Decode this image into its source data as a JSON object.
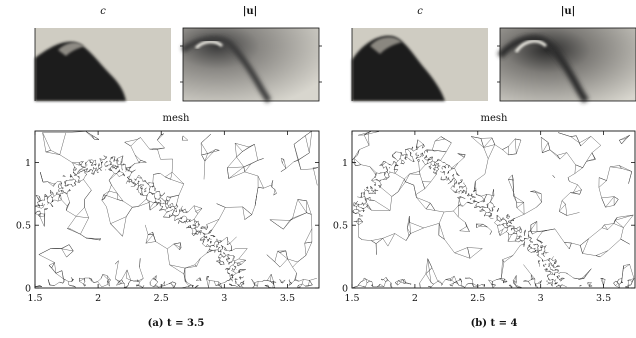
{
  "figure": {
    "panels": [
      {
        "id": "a",
        "caption": "(a) t = 3.5",
        "field_titles": [
          "c",
          "|u|"
        ],
        "mesh_title": "mesh",
        "x_ticks": [
          "1.5",
          "2",
          "2.5",
          "3",
          "3.5"
        ],
        "y_ticks": [
          "0",
          "0.5",
          "1"
        ]
      },
      {
        "id": "b",
        "caption": "(b) t = 4",
        "field_titles": [
          "c",
          "|u|"
        ],
        "mesh_title": "mesh",
        "x_ticks": [
          "1.5",
          "2",
          "2.5",
          "3",
          "3.5"
        ],
        "y_ticks": [
          "0",
          "0.5",
          "1"
        ]
      }
    ],
    "colors": {
      "field_bg": "#cfccc2",
      "field_dark": "#1f1f1f",
      "mesh_line": "#222222"
    }
  },
  "chart_data": [
    {
      "type": "other",
      "title": "mesh",
      "xlim": [
        1.5,
        3.75
      ],
      "ylim": [
        0,
        1.25
      ],
      "x_ticks": [
        1.5,
        2,
        2.5,
        3,
        3.5
      ],
      "y_ticks": [
        0,
        0.5,
        1
      ]
    },
    {
      "type": "other",
      "title": "mesh",
      "xlim": [
        1.5,
        3.75
      ],
      "ylim": [
        0,
        1.25
      ],
      "x_ticks": [
        1.5,
        2,
        2.5,
        3,
        3.5
      ],
      "y_ticks": [
        0,
        0.5,
        1
      ]
    }
  ]
}
